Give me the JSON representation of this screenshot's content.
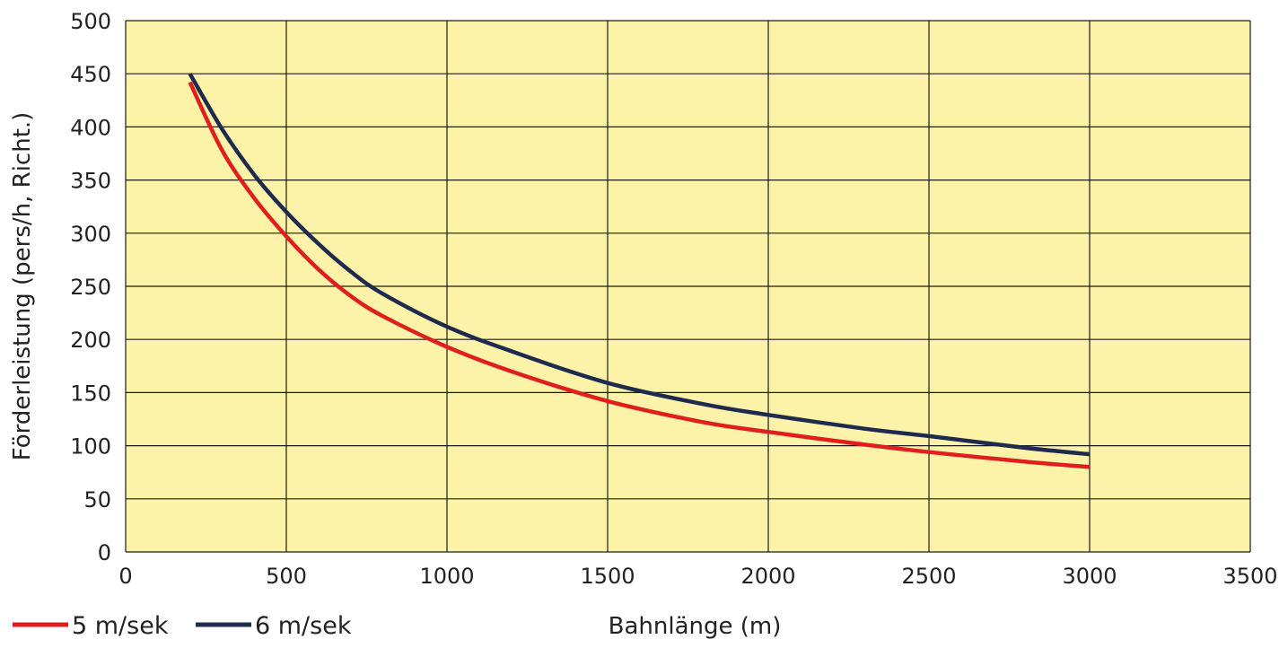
{
  "chart_data": {
    "type": "line",
    "xlabel": "Bahnlänge (m)",
    "ylabel": "Förderleistung (pers/h, Richt.)",
    "xlim": [
      0,
      3500
    ],
    "ylim": [
      0,
      500
    ],
    "xticks": [
      0,
      500,
      1000,
      1500,
      2000,
      2500,
      3000,
      3500
    ],
    "yticks": [
      0,
      50,
      100,
      150,
      200,
      250,
      300,
      350,
      400,
      450,
      500
    ],
    "grid": true,
    "legend": "bottom-left",
    "x": [
      200,
      300,
      400,
      500,
      600,
      700,
      800,
      1000,
      1200,
      1500,
      1800,
      2000,
      2300,
      2500,
      2800,
      3000
    ],
    "series": [
      {
        "name": "5 m/sek",
        "color": "#e01e1e",
        "values": [
          442,
          378,
          333,
          297,
          266,
          241,
          222,
          193,
          170,
          142,
          122,
          113,
          101,
          94,
          85,
          80
        ]
      },
      {
        "name": "6 m/sek",
        "color": "#1f2a4f",
        "values": [
          450,
          398,
          355,
          320,
          290,
          264,
          243,
          212,
          189,
          159,
          139,
          129,
          116,
          109,
          98,
          92
        ]
      }
    ]
  },
  "colors": {
    "plot_background": "#fdf3a8",
    "grid": "#1a1a1a"
  }
}
